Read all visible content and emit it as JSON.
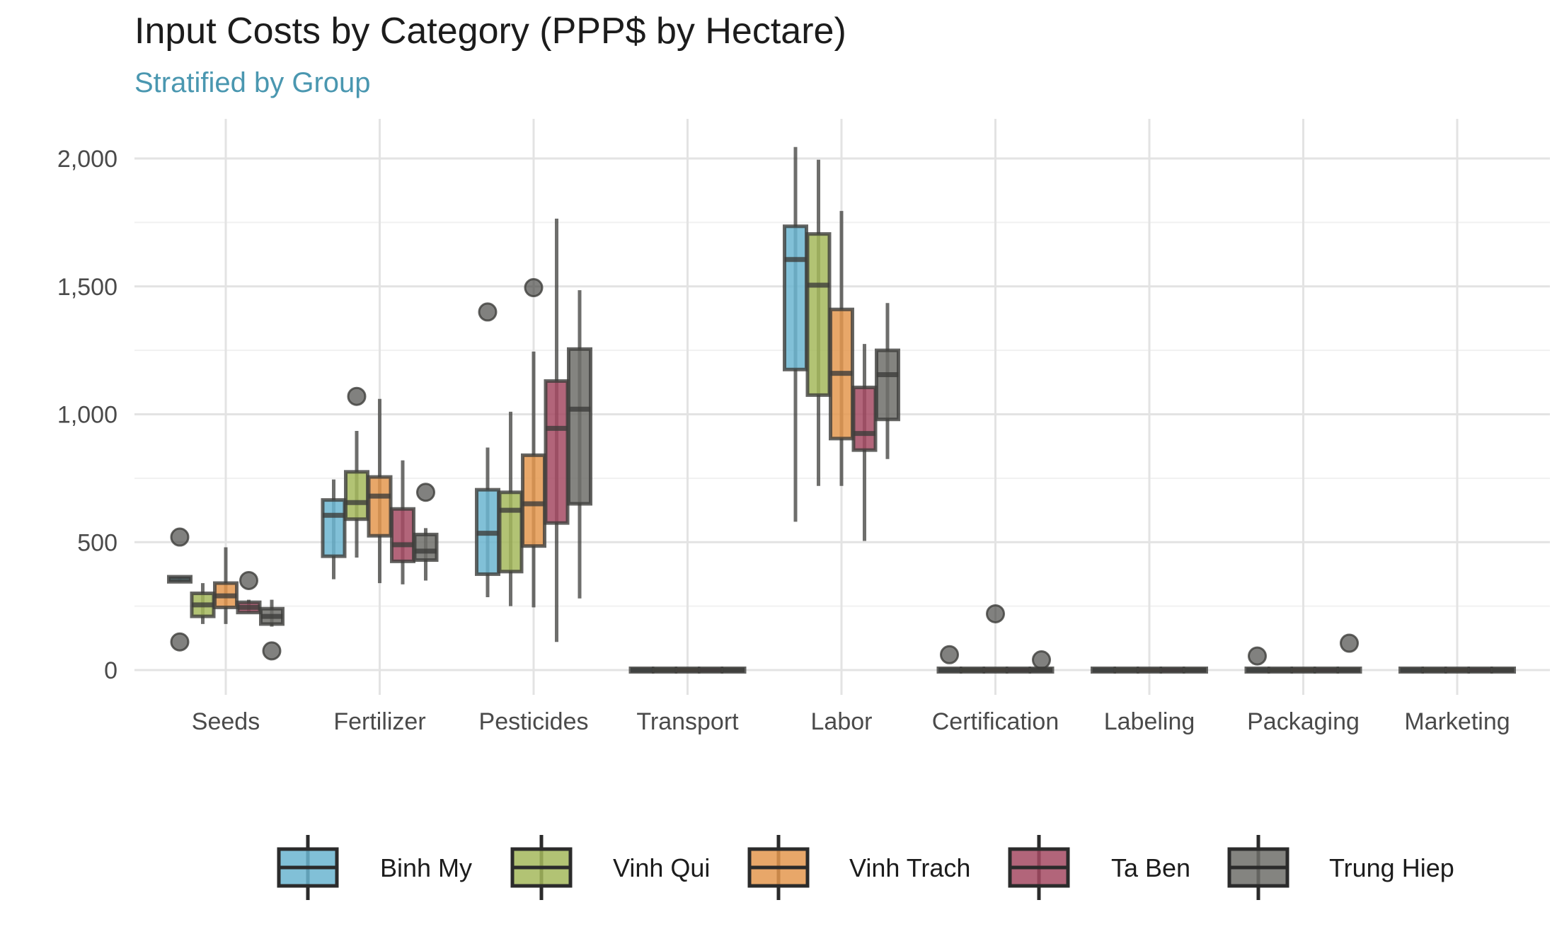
{
  "chart_data": {
    "type": "boxplot",
    "title": "Input Costs by Category (PPP$ by Hectare)",
    "subtitle": "Stratified by Group",
    "xlabel": "",
    "ylabel": "",
    "ylim": [
      -160,
      2150
    ],
    "y_ticks": [
      0,
      500,
      1000,
      1500,
      2000
    ],
    "y_tick_labels": [
      "0",
      "500",
      "1,000",
      "1,500",
      "2,000"
    ],
    "grid": true,
    "legend_position": "bottom",
    "categories": [
      "Seeds",
      "Fertilizer",
      "Pesticides",
      "Transport",
      "Labor",
      "Certification",
      "Labeling",
      "Packaging",
      "Marketing"
    ],
    "series": [
      {
        "name": "Binh My",
        "color": "#6bb5d0",
        "boxes": [
          {
            "whisker_low": 345,
            "q1": 345,
            "median": 355,
            "q3": 365,
            "whisker_high": 365,
            "outliers": [
              520,
              110
            ]
          },
          {
            "whisker_low": 355,
            "q1": 445,
            "median": 605,
            "q3": 665,
            "whisker_high": 745,
            "outliers": []
          },
          {
            "whisker_low": 285,
            "q1": 375,
            "median": 535,
            "q3": 705,
            "whisker_high": 870,
            "outliers": [
              1400
            ]
          },
          {
            "whisker_low": 0,
            "q1": 0,
            "median": 0,
            "q3": 0,
            "whisker_high": 0,
            "outliers": []
          },
          {
            "whisker_low": 580,
            "q1": 1175,
            "median": 1605,
            "q3": 1735,
            "whisker_high": 2045,
            "outliers": []
          },
          {
            "whisker_low": 0,
            "q1": 0,
            "median": 0,
            "q3": 0,
            "whisker_high": 0,
            "outliers": [
              60
            ]
          },
          {
            "whisker_low": 0,
            "q1": 0,
            "median": 0,
            "q3": 0,
            "whisker_high": 0,
            "outliers": []
          },
          {
            "whisker_low": 0,
            "q1": 0,
            "median": 0,
            "q3": 0,
            "whisker_high": 0,
            "outliers": [
              55
            ]
          },
          {
            "whisker_low": 0,
            "q1": 0,
            "median": 0,
            "q3": 0,
            "whisker_high": 0,
            "outliers": []
          }
        ]
      },
      {
        "name": "Vinh Qui",
        "color": "#a5b95c",
        "boxes": [
          {
            "whisker_low": 180,
            "q1": 210,
            "median": 255,
            "q3": 300,
            "whisker_high": 340,
            "outliers": []
          },
          {
            "whisker_low": 440,
            "q1": 590,
            "median": 655,
            "q3": 775,
            "whisker_high": 935,
            "outliers": [
              1070
            ]
          },
          {
            "whisker_low": 250,
            "q1": 385,
            "median": 625,
            "q3": 695,
            "whisker_high": 1010,
            "outliers": []
          },
          {
            "whisker_low": 0,
            "q1": 0,
            "median": 0,
            "q3": 0,
            "whisker_high": 0,
            "outliers": []
          },
          {
            "whisker_low": 720,
            "q1": 1075,
            "median": 1505,
            "q3": 1705,
            "whisker_high": 1995,
            "outliers": []
          },
          {
            "whisker_low": 0,
            "q1": 0,
            "median": 0,
            "q3": 0,
            "whisker_high": 0,
            "outliers": []
          },
          {
            "whisker_low": 0,
            "q1": 0,
            "median": 0,
            "q3": 0,
            "whisker_high": 0,
            "outliers": []
          },
          {
            "whisker_low": 0,
            "q1": 0,
            "median": 0,
            "q3": 0,
            "whisker_high": 0,
            "outliers": []
          },
          {
            "whisker_low": 0,
            "q1": 0,
            "median": 0,
            "q3": 0,
            "whisker_high": 0,
            "outliers": []
          }
        ]
      },
      {
        "name": "Vinh Trach",
        "color": "#e4984f",
        "boxes": [
          {
            "whisker_low": 180,
            "q1": 245,
            "median": 290,
            "q3": 340,
            "whisker_high": 480,
            "outliers": []
          },
          {
            "whisker_low": 340,
            "q1": 525,
            "median": 680,
            "q3": 755,
            "whisker_high": 1060,
            "outliers": []
          },
          {
            "whisker_low": 245,
            "q1": 485,
            "median": 650,
            "q3": 840,
            "whisker_high": 1245,
            "outliers": [
              1495
            ]
          },
          {
            "whisker_low": 0,
            "q1": 0,
            "median": 0,
            "q3": 0,
            "whisker_high": 0,
            "outliers": []
          },
          {
            "whisker_low": 720,
            "q1": 905,
            "median": 1160,
            "q3": 1410,
            "whisker_high": 1795,
            "outliers": []
          },
          {
            "whisker_low": 0,
            "q1": 0,
            "median": 0,
            "q3": 0,
            "whisker_high": 0,
            "outliers": [
              220
            ]
          },
          {
            "whisker_low": 0,
            "q1": 0,
            "median": 0,
            "q3": 0,
            "whisker_high": 0,
            "outliers": []
          },
          {
            "whisker_low": 0,
            "q1": 0,
            "median": 0,
            "q3": 0,
            "whisker_high": 0,
            "outliers": []
          },
          {
            "whisker_low": 0,
            "q1": 0,
            "median": 0,
            "q3": 0,
            "whisker_high": 0,
            "outliers": []
          }
        ]
      },
      {
        "name": "Ta Ben",
        "color": "#a54a63",
        "boxes": [
          {
            "whisker_low": 225,
            "q1": 225,
            "median": 245,
            "q3": 265,
            "whisker_high": 275,
            "outliers": [
              350
            ]
          },
          {
            "whisker_low": 335,
            "q1": 425,
            "median": 490,
            "q3": 630,
            "whisker_high": 820,
            "outliers": []
          },
          {
            "whisker_low": 110,
            "q1": 575,
            "median": 945,
            "q3": 1130,
            "whisker_high": 1765,
            "outliers": []
          },
          {
            "whisker_low": 0,
            "q1": 0,
            "median": 0,
            "q3": 0,
            "whisker_high": 0,
            "outliers": []
          },
          {
            "whisker_low": 505,
            "q1": 860,
            "median": 925,
            "q3": 1105,
            "whisker_high": 1275,
            "outliers": []
          },
          {
            "whisker_low": 0,
            "q1": 0,
            "median": 0,
            "q3": 0,
            "whisker_high": 0,
            "outliers": []
          },
          {
            "whisker_low": 0,
            "q1": 0,
            "median": 0,
            "q3": 0,
            "whisker_high": 0,
            "outliers": []
          },
          {
            "whisker_low": 0,
            "q1": 0,
            "median": 0,
            "q3": 0,
            "whisker_high": 0,
            "outliers": []
          },
          {
            "whisker_low": 0,
            "q1": 0,
            "median": 0,
            "q3": 0,
            "whisker_high": 0,
            "outliers": []
          }
        ]
      },
      {
        "name": "Trung Hiep",
        "color": "#6e6e6a",
        "boxes": [
          {
            "whisker_low": 170,
            "q1": 180,
            "median": 210,
            "q3": 240,
            "whisker_high": 275,
            "outliers": [
              75
            ]
          },
          {
            "whisker_low": 350,
            "q1": 430,
            "median": 465,
            "q3": 530,
            "whisker_high": 555,
            "outliers": [
              695
            ]
          },
          {
            "whisker_low": 280,
            "q1": 650,
            "median": 1020,
            "q3": 1255,
            "whisker_high": 1485,
            "outliers": []
          },
          {
            "whisker_low": 0,
            "q1": 0,
            "median": 0,
            "q3": 0,
            "whisker_high": 0,
            "outliers": []
          },
          {
            "whisker_low": 825,
            "q1": 980,
            "median": 1155,
            "q3": 1250,
            "whisker_high": 1435,
            "outliers": []
          },
          {
            "whisker_low": 0,
            "q1": 0,
            "median": 0,
            "q3": 0,
            "whisker_high": 0,
            "outliers": [
              40
            ]
          },
          {
            "whisker_low": 0,
            "q1": 0,
            "median": 0,
            "q3": 0,
            "whisker_high": 0,
            "outliers": []
          },
          {
            "whisker_low": 0,
            "q1": 0,
            "median": 0,
            "q3": 0,
            "whisker_high": 0,
            "outliers": [
              105
            ]
          },
          {
            "whisker_low": 0,
            "q1": 0,
            "median": 0,
            "q3": 0,
            "whisker_high": 0,
            "outliers": []
          }
        ]
      }
    ]
  }
}
